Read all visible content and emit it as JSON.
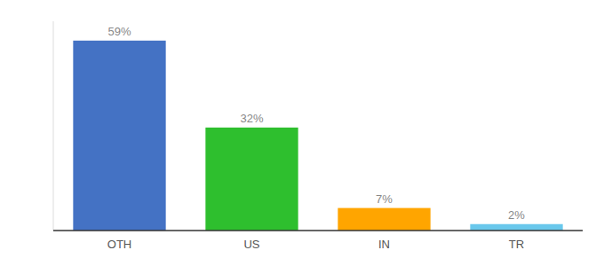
{
  "chart_data": {
    "type": "bar",
    "categories": [
      "OTH",
      "US",
      "IN",
      "TR"
    ],
    "values": [
      59,
      32,
      7,
      2
    ],
    "value_labels": [
      "59%",
      "32%",
      "7%",
      "2%"
    ],
    "colors": [
      "#4472C4",
      "#2EBF2E",
      "#FFA500",
      "#69C8EC"
    ],
    "ylim": [
      0,
      65
    ],
    "data_labels": true,
    "tick_labels": "x",
    "grid": false
  }
}
